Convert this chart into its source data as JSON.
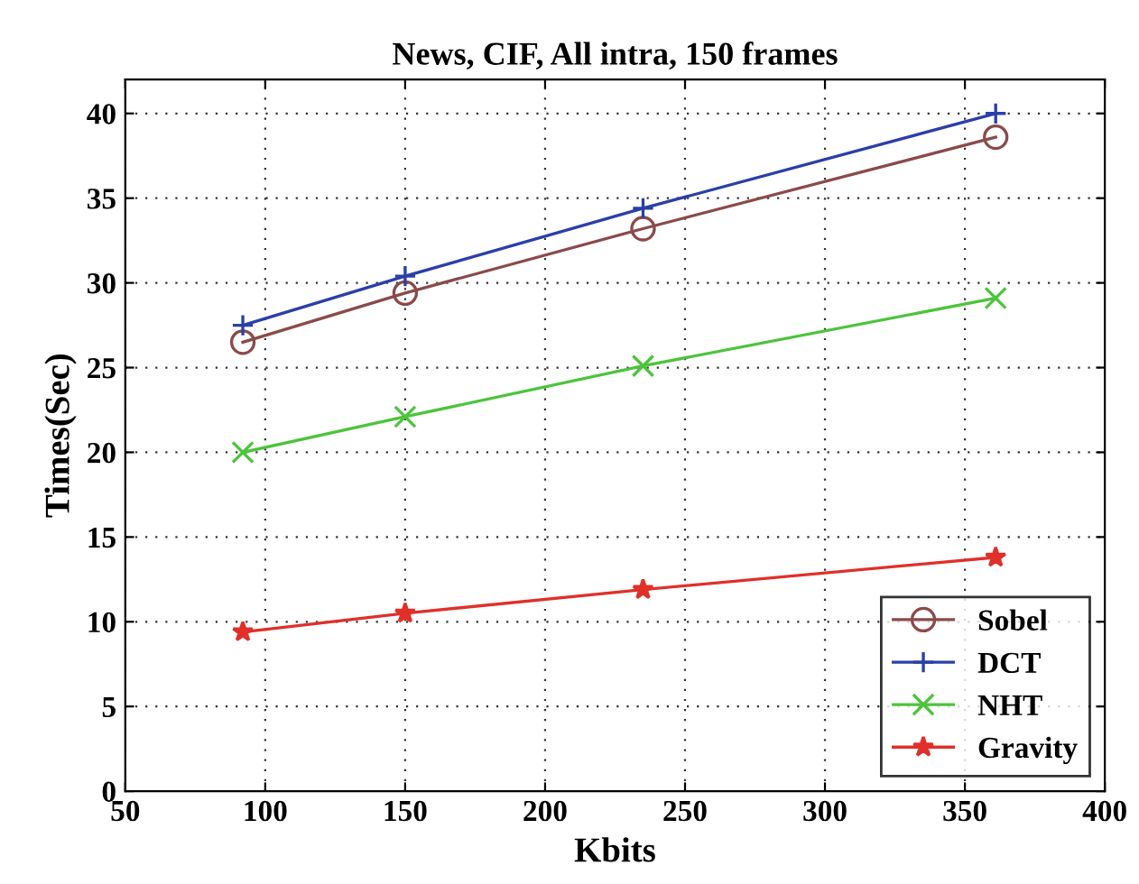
{
  "chart_data": {
    "type": "line",
    "title": "News, CIF, All intra, 150 frames",
    "xlabel": "Kbits",
    "ylabel": "Times(Sec)",
    "x": [
      92,
      150,
      235,
      361
    ],
    "series": [
      {
        "name": "Sobel",
        "color": "#8b4a4a",
        "marker": "circle",
        "values": [
          26.5,
          29.4,
          33.2,
          38.6
        ]
      },
      {
        "name": "DCT",
        "color": "#2a3fa8",
        "marker": "cross",
        "values": [
          27.5,
          30.4,
          34.4,
          40.0
        ]
      },
      {
        "name": "NHT",
        "color": "#4cc43c",
        "marker": "x",
        "values": [
          20.0,
          22.1,
          25.1,
          29.1
        ]
      },
      {
        "name": "Gravity",
        "color": "#e0302a",
        "marker": "star",
        "values": [
          9.4,
          10.5,
          11.9,
          13.8
        ]
      }
    ],
    "xlim": [
      50,
      400
    ],
    "xticks": [
      50,
      100,
      150,
      200,
      250,
      300,
      350,
      400
    ],
    "ylim": [
      0,
      42
    ],
    "yticks": [
      0,
      5,
      10,
      15,
      20,
      25,
      30,
      35,
      40
    ],
    "grid": true,
    "legend": "bottom right",
    "line_style": "solid"
  }
}
